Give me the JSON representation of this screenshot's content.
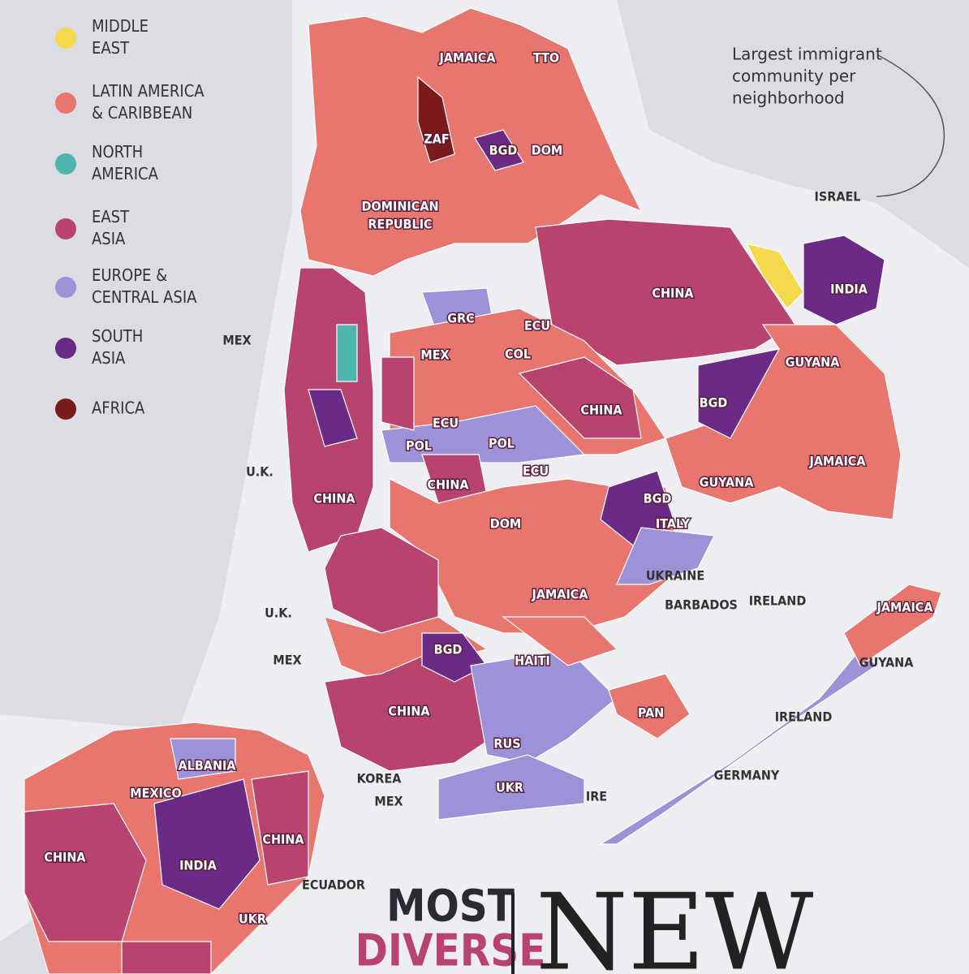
{
  "legend": [
    {
      "label": [
        "MIDDLE",
        "EAST"
      ],
      "color": "#f3d94b"
    },
    {
      "label": [
        "LATIN AMERICA",
        "& CARIBBEAN"
      ],
      "color": "#e8766f"
    },
    {
      "label": [
        "NORTH",
        "AMERICA"
      ],
      "color": "#4fb5ac"
    },
    {
      "label": [
        "EAST",
        "ASIA"
      ],
      "color": "#b8436f"
    },
    {
      "label": [
        "EUROPE &",
        "CENTRAL ASIA"
      ],
      "color": "#9d91d8"
    },
    {
      "label": [
        "SOUTH",
        "ASIA"
      ],
      "color": "#6a2a86"
    },
    {
      "label": [
        "AFRICA"
      ],
      "color": "#7b1a1c"
    }
  ],
  "annotation": [
    "Largest immigrant",
    "community per",
    "neighborhood"
  ],
  "labels": [
    "JAMAICA",
    "TTO",
    "ZAF",
    "BGD",
    "DOM",
    "DOMINICAN",
    "REPUBLIC",
    "ISRAEL",
    "CHINA",
    "INDIA",
    "GRC",
    "ECU",
    "MEX",
    "COL",
    "MEX",
    "GUYANA",
    "CHINA",
    "BGD",
    "ECU",
    "POL",
    "POL",
    "U.K.",
    "CHINA",
    "CHINA",
    "ECU",
    "JAMAICA",
    "GUYANA",
    "BGD",
    "ITALY",
    "DOM",
    "UKRAINE",
    "JAMAICA",
    "BARBADOS",
    "IRELAND",
    "JAMAICA",
    "U.K.",
    "MEX",
    "BGD",
    "HAITI",
    "GUYANA",
    "CHINA",
    "PAN",
    "IRELAND",
    "RUS",
    "ALBANIA",
    "KOREA",
    "MEX",
    "GERMANY",
    "MEXICO",
    "UKR",
    "IRE",
    "CHINA",
    "CHINA",
    "INDIA",
    "ECUADOR",
    "UKR"
  ],
  "title": [
    "MOST",
    "DIVERSE"
  ],
  "title_big": "NEW"
}
